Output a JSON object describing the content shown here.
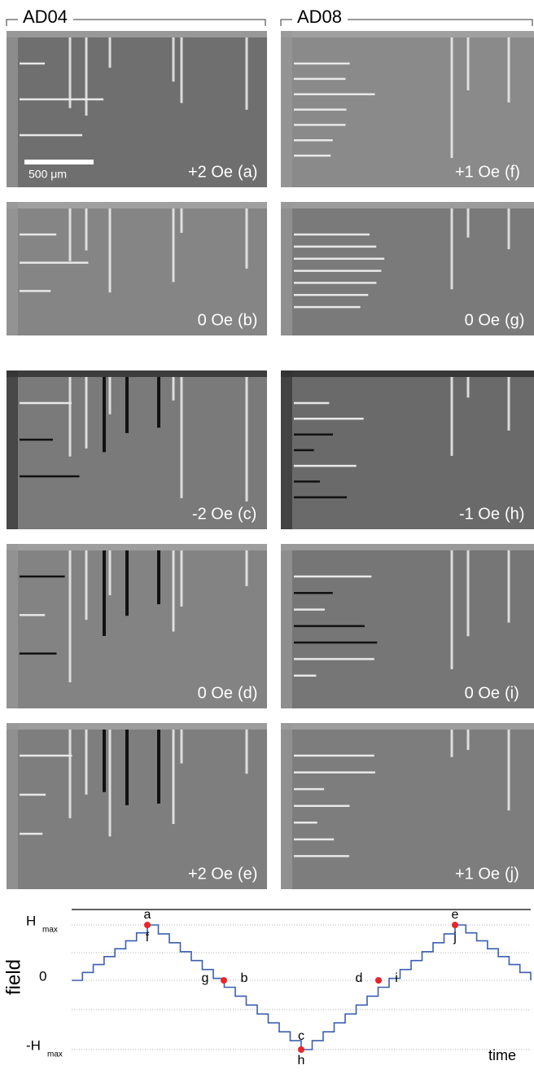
{
  "columns": [
    {
      "title": "AD04",
      "panels": [
        {
          "field": "+2 Oe",
          "letter": "(a)"
        },
        {
          "field": "0 Oe",
          "letter": "(b)"
        },
        {
          "field": "-2 Oe",
          "letter": "(c)"
        },
        {
          "field": "0 Oe",
          "letter": "(d)"
        },
        {
          "field": "+2 Oe",
          "letter": "(e)"
        }
      ]
    },
    {
      "title": "AD08",
      "panels": [
        {
          "field": "+1 Oe",
          "letter": "(f)"
        },
        {
          "field": "0 Oe",
          "letter": "(g)"
        },
        {
          "field": "-1 Oe",
          "letter": "(h)"
        },
        {
          "field": "0 Oe",
          "letter": "(i)"
        },
        {
          "field": "+1 Oe",
          "letter": "(j)"
        }
      ]
    }
  ],
  "scale_bar": "500 μm",
  "plot": {
    "y_axis_label": "field",
    "x_axis_label": "time",
    "y_labels": [
      {
        "main": "H",
        "sub": "max"
      },
      {
        "main": "0"
      },
      {
        "main": "-H",
        "sub": "max"
      }
    ],
    "points": [
      "a",
      "f",
      "g",
      "b",
      "c",
      "h",
      "d",
      "i",
      "e",
      "j"
    ]
  }
}
